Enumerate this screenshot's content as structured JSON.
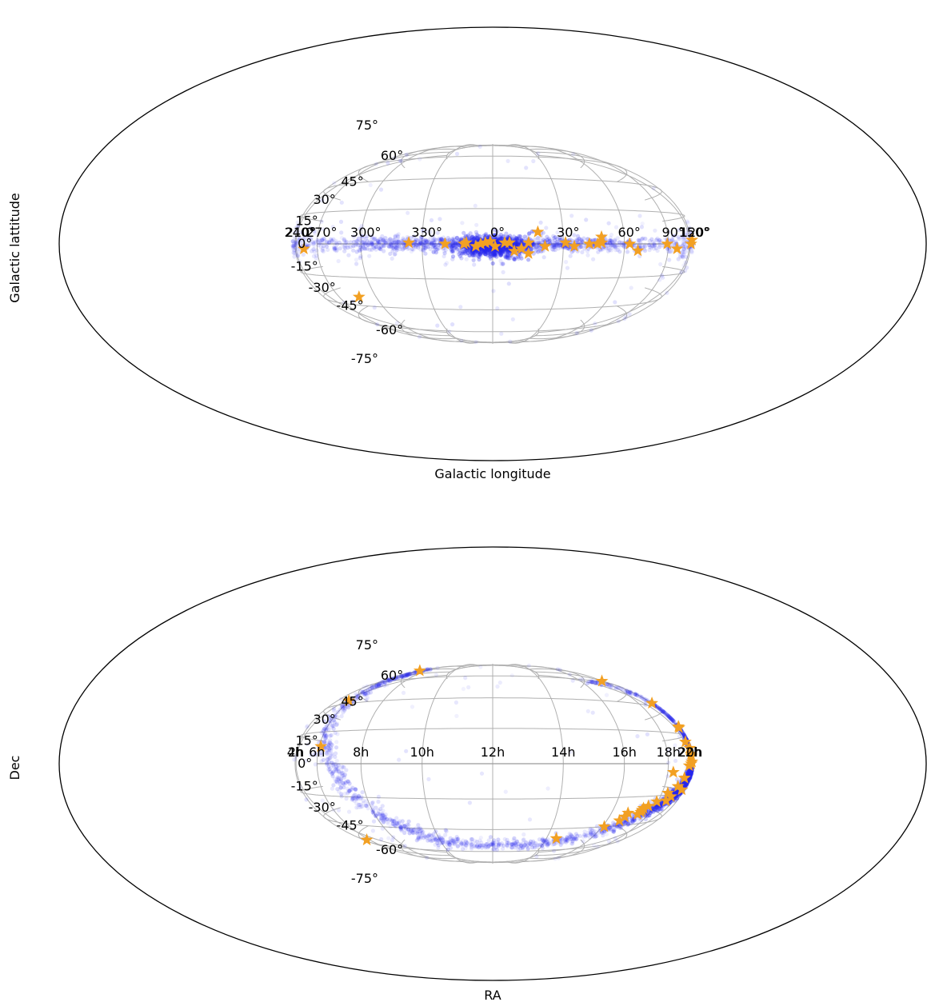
{
  "colors": {
    "points": "#2828ee",
    "stars": "#f2a023",
    "grid": "#b0b0b0"
  },
  "chart_data": [
    {
      "type": "scatter",
      "projection": "aitoff",
      "xlabel": "Galactic longitude",
      "ylabel": "Galactic lattitude",
      "lon_tick_labels": [
        "150°",
        "120°",
        "90°",
        "60°",
        "30°",
        "0°",
        "330°",
        "300°",
        "270°",
        "240°",
        "210°"
      ],
      "lat_tick_labels": [
        "75°",
        "60°",
        "45°",
        "30°",
        "15°",
        "0°",
        "-15°",
        "-30°",
        "-45°",
        "-60°",
        "-75°"
      ],
      "grid": true,
      "point_cloud": {
        "description_lon_range": [
          -180,
          180
        ],
        "core_lon": 0,
        "core_lat": -1,
        "plane_lat": 0
      },
      "stars": [
        {
          "lon": 170,
          "lat": -3
        },
        {
          "lon": 127,
          "lat": 2
        },
        {
          "lon": 122,
          "lat": 0
        },
        {
          "lon": 89,
          "lat": 0
        },
        {
          "lon": 68,
          "lat": -3
        },
        {
          "lon": 63,
          "lat": 0
        },
        {
          "lon": 48,
          "lat": 3
        },
        {
          "lon": 48,
          "lat": 0.5
        },
        {
          "lon": 46,
          "lat": 0
        },
        {
          "lon": 42,
          "lat": 0
        },
        {
          "lon": 35,
          "lat": -1
        },
        {
          "lon": 31,
          "lat": 0.5
        },
        {
          "lon": 22,
          "lat": -1
        },
        {
          "lon": 19,
          "lat": 5
        },
        {
          "lon": 15,
          "lat": 0.5
        },
        {
          "lon": 15,
          "lat": -4
        },
        {
          "lon": 12,
          "lat": -2
        },
        {
          "lon": 9,
          "lat": -3
        },
        {
          "lon": 7,
          "lat": 0.5
        },
        {
          "lon": 5,
          "lat": 0.5
        },
        {
          "lon": 1,
          "lat": -1
        },
        {
          "lon": -1,
          "lat": 1
        },
        {
          "lon": -3,
          "lat": 0.5
        },
        {
          "lon": -5,
          "lat": 0
        },
        {
          "lon": -7,
          "lat": -1
        },
        {
          "lon": -11,
          "lat": 0.5
        },
        {
          "lon": -12,
          "lat": 0
        },
        {
          "lon": -20,
          "lat": 0
        },
        {
          "lon": -36,
          "lat": 0.5
        },
        {
          "lon": -72,
          "lat": -25
        },
        {
          "lon": -164,
          "lat": -3
        }
      ]
    },
    {
      "type": "scatter",
      "projection": "aitoff",
      "xlabel": "RA",
      "ylabel": "Dec",
      "lon_tick_labels": [
        "22h",
        "20h",
        "18h",
        "16h",
        "14h",
        "12h",
        "10h",
        "8h",
        "6h",
        "4h",
        "2h"
      ],
      "lat_tick_labels": [
        "75°",
        "60°",
        "45°",
        "30°",
        "15°",
        "0°",
        "-15°",
        "-30°",
        "-45°",
        "-60°",
        "-75°"
      ],
      "grid": true,
      "stars": [
        {
          "ra_h": 20.18,
          "dec": 53
        },
        {
          "ra_h": 20.35,
          "dec": 34
        },
        {
          "ra_h": 20.4,
          "dec": 19
        },
        {
          "ra_h": 20.77,
          "dec": 20
        },
        {
          "ra_h": 19.9,
          "dec": 11
        },
        {
          "ra_h": 20.4,
          "dec": 8
        },
        {
          "ra_h": 20.4,
          "dec": 5
        },
        {
          "ra_h": 20.4,
          "dec": 4
        },
        {
          "ra_h": 20.4,
          "dec": 1
        },
        {
          "ra_h": 20.2,
          "dec": 0
        },
        {
          "ra_h": 19.8,
          "dec": -1
        },
        {
          "ra_h": 18.35,
          "dec": -4
        },
        {
          "ra_h": 19.4,
          "dec": -7
        },
        {
          "ra_h": 19.0,
          "dec": -11
        },
        {
          "ra_h": 19.6,
          "dec": -13
        },
        {
          "ra_h": 18.4,
          "dec": -14
        },
        {
          "ra_h": 18.8,
          "dec": -16
        },
        {
          "ra_h": 18.6,
          "dec": -18
        },
        {
          "ra_h": 17.95,
          "dec": -18
        },
        {
          "ra_h": 17.6,
          "dec": -20
        },
        {
          "ra_h": 17.4,
          "dec": -21
        },
        {
          "ra_h": 17.4,
          "dec": -22
        },
        {
          "ra_h": 17.4,
          "dec": -23
        },
        {
          "ra_h": 17.3,
          "dec": -24
        },
        {
          "ra_h": 16.75,
          "dec": -23
        },
        {
          "ra_h": 16.72,
          "dec": -25
        },
        {
          "ra_h": 16.6,
          "dec": -27
        },
        {
          "ra_h": 16.1,
          "dec": -30
        },
        {
          "ra_h": 14.4,
          "dec": -36
        },
        {
          "ra_h": 5.6,
          "dec": -42
        },
        {
          "ra_h": 7.05,
          "dec": 57
        },
        {
          "ra_h": 5.92,
          "dec": 32
        },
        {
          "ra_h": 6.1,
          "dec": 8
        }
      ]
    }
  ]
}
